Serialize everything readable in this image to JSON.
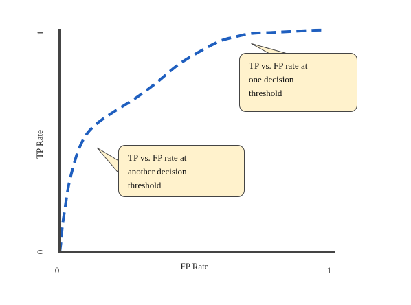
{
  "chart_data": {
    "type": "line",
    "title": "",
    "xlabel": "FP Rate",
    "ylabel": "TP Rate",
    "xlim": [
      0,
      1
    ],
    "ylim": [
      0,
      1
    ],
    "x_ticks": [
      "0",
      "1"
    ],
    "y_ticks": [
      "0",
      "1"
    ],
    "grid": false,
    "legend": "none",
    "series": [
      {
        "x": [
          0.0,
          0.005,
          0.01,
          0.02,
          0.03,
          0.045,
          0.07,
          0.1,
          0.14,
          0.2,
          0.28,
          0.36,
          0.44,
          0.52,
          0.6,
          0.66,
          0.72,
          0.8,
          0.88,
          0.96,
          1.0
        ],
        "y": [
          0.0,
          0.05,
          0.12,
          0.2,
          0.28,
          0.36,
          0.46,
          0.53,
          0.58,
          0.63,
          0.69,
          0.76,
          0.84,
          0.9,
          0.95,
          0.97,
          0.985,
          0.99,
          0.995,
          1.0,
          1.0
        ],
        "color": "#1f5fbf",
        "style": "dashed"
      }
    ],
    "annotations": [
      {
        "text": "TP vs. FP rate at\none decision\nthreshold",
        "point": [
          0.72,
          0.94
        ]
      },
      {
        "text": "TP vs. FP rate at\nanother decision\nthreshold",
        "point": [
          0.14,
          0.47
        ]
      }
    ]
  }
}
